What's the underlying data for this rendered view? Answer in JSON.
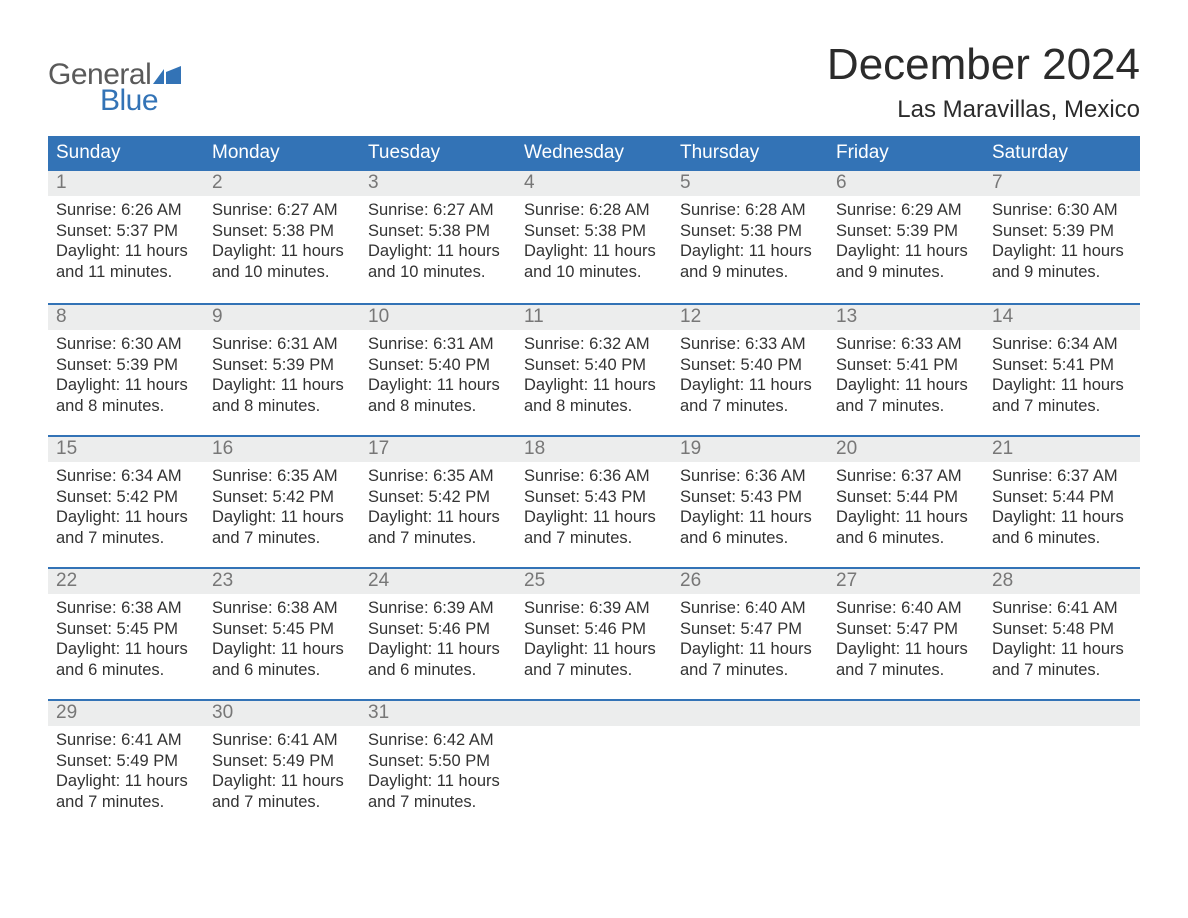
{
  "logo": {
    "general": "General",
    "blue": "Blue"
  },
  "title": "December 2024",
  "location": "Las Maravillas, Mexico",
  "colors": {
    "header_bg": "#3373b6",
    "header_text": "#ffffff",
    "daynum_bg": "#eceded",
    "daynum_text": "#777777",
    "body_text": "#333333",
    "logo_gray": "#5a5a5a",
    "logo_blue": "#3373b6",
    "week_border": "#3373b6",
    "background": "#ffffff"
  },
  "typography": {
    "title_fontsize": 44,
    "location_fontsize": 24,
    "dayheader_fontsize": 19,
    "daynum_fontsize": 19,
    "details_fontsize": 16.5,
    "font_family": "Arial"
  },
  "layout": {
    "columns": 7,
    "rows": 5,
    "cell_min_height": 132
  },
  "day_names": [
    "Sunday",
    "Monday",
    "Tuesday",
    "Wednesday",
    "Thursday",
    "Friday",
    "Saturday"
  ],
  "labels": {
    "sunrise": "Sunrise",
    "sunset": "Sunset",
    "daylight": "Daylight",
    "hours": "hours",
    "and": "and",
    "minutes": "minutes."
  },
  "weeks": [
    [
      {
        "n": "1",
        "sunrise": "6:26 AM",
        "sunset": "5:37 PM",
        "dl_h": "11",
        "dl_m": "11"
      },
      {
        "n": "2",
        "sunrise": "6:27 AM",
        "sunset": "5:38 PM",
        "dl_h": "11",
        "dl_m": "10"
      },
      {
        "n": "3",
        "sunrise": "6:27 AM",
        "sunset": "5:38 PM",
        "dl_h": "11",
        "dl_m": "10"
      },
      {
        "n": "4",
        "sunrise": "6:28 AM",
        "sunset": "5:38 PM",
        "dl_h": "11",
        "dl_m": "10"
      },
      {
        "n": "5",
        "sunrise": "6:28 AM",
        "sunset": "5:38 PM",
        "dl_h": "11",
        "dl_m": "9"
      },
      {
        "n": "6",
        "sunrise": "6:29 AM",
        "sunset": "5:39 PM",
        "dl_h": "11",
        "dl_m": "9"
      },
      {
        "n": "7",
        "sunrise": "6:30 AM",
        "sunset": "5:39 PM",
        "dl_h": "11",
        "dl_m": "9"
      }
    ],
    [
      {
        "n": "8",
        "sunrise": "6:30 AM",
        "sunset": "5:39 PM",
        "dl_h": "11",
        "dl_m": "8"
      },
      {
        "n": "9",
        "sunrise": "6:31 AM",
        "sunset": "5:39 PM",
        "dl_h": "11",
        "dl_m": "8"
      },
      {
        "n": "10",
        "sunrise": "6:31 AM",
        "sunset": "5:40 PM",
        "dl_h": "11",
        "dl_m": "8"
      },
      {
        "n": "11",
        "sunrise": "6:32 AM",
        "sunset": "5:40 PM",
        "dl_h": "11",
        "dl_m": "8"
      },
      {
        "n": "12",
        "sunrise": "6:33 AM",
        "sunset": "5:40 PM",
        "dl_h": "11",
        "dl_m": "7"
      },
      {
        "n": "13",
        "sunrise": "6:33 AM",
        "sunset": "5:41 PM",
        "dl_h": "11",
        "dl_m": "7"
      },
      {
        "n": "14",
        "sunrise": "6:34 AM",
        "sunset": "5:41 PM",
        "dl_h": "11",
        "dl_m": "7"
      }
    ],
    [
      {
        "n": "15",
        "sunrise": "6:34 AM",
        "sunset": "5:42 PM",
        "dl_h": "11",
        "dl_m": "7"
      },
      {
        "n": "16",
        "sunrise": "6:35 AM",
        "sunset": "5:42 PM",
        "dl_h": "11",
        "dl_m": "7"
      },
      {
        "n": "17",
        "sunrise": "6:35 AM",
        "sunset": "5:42 PM",
        "dl_h": "11",
        "dl_m": "7"
      },
      {
        "n": "18",
        "sunrise": "6:36 AM",
        "sunset": "5:43 PM",
        "dl_h": "11",
        "dl_m": "7"
      },
      {
        "n": "19",
        "sunrise": "6:36 AM",
        "sunset": "5:43 PM",
        "dl_h": "11",
        "dl_m": "6"
      },
      {
        "n": "20",
        "sunrise": "6:37 AM",
        "sunset": "5:44 PM",
        "dl_h": "11",
        "dl_m": "6"
      },
      {
        "n": "21",
        "sunrise": "6:37 AM",
        "sunset": "5:44 PM",
        "dl_h": "11",
        "dl_m": "6"
      }
    ],
    [
      {
        "n": "22",
        "sunrise": "6:38 AM",
        "sunset": "5:45 PM",
        "dl_h": "11",
        "dl_m": "6"
      },
      {
        "n": "23",
        "sunrise": "6:38 AM",
        "sunset": "5:45 PM",
        "dl_h": "11",
        "dl_m": "6"
      },
      {
        "n": "24",
        "sunrise": "6:39 AM",
        "sunset": "5:46 PM",
        "dl_h": "11",
        "dl_m": "6"
      },
      {
        "n": "25",
        "sunrise": "6:39 AM",
        "sunset": "5:46 PM",
        "dl_h": "11",
        "dl_m": "7"
      },
      {
        "n": "26",
        "sunrise": "6:40 AM",
        "sunset": "5:47 PM",
        "dl_h": "11",
        "dl_m": "7"
      },
      {
        "n": "27",
        "sunrise": "6:40 AM",
        "sunset": "5:47 PM",
        "dl_h": "11",
        "dl_m": "7"
      },
      {
        "n": "28",
        "sunrise": "6:41 AM",
        "sunset": "5:48 PM",
        "dl_h": "11",
        "dl_m": "7"
      }
    ],
    [
      {
        "n": "29",
        "sunrise": "6:41 AM",
        "sunset": "5:49 PM",
        "dl_h": "11",
        "dl_m": "7"
      },
      {
        "n": "30",
        "sunrise": "6:41 AM",
        "sunset": "5:49 PM",
        "dl_h": "11",
        "dl_m": "7"
      },
      {
        "n": "31",
        "sunrise": "6:42 AM",
        "sunset": "5:50 PM",
        "dl_h": "11",
        "dl_m": "7"
      },
      null,
      null,
      null,
      null
    ]
  ]
}
